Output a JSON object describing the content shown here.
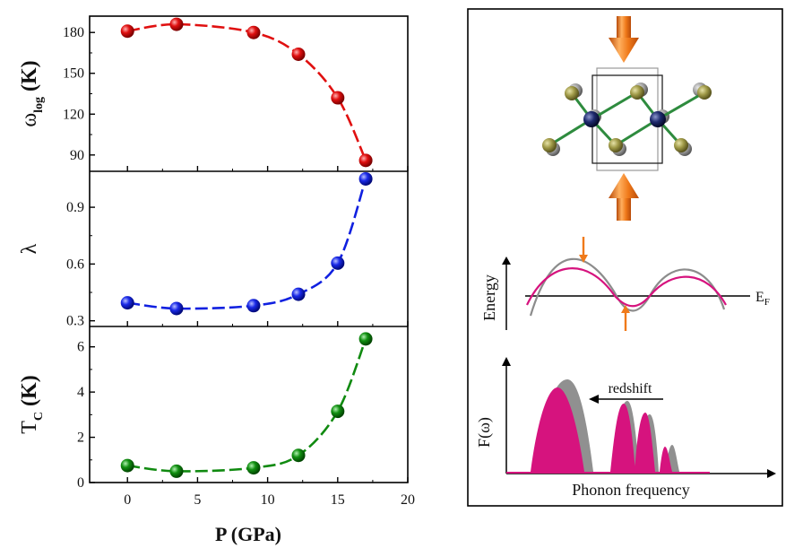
{
  "chart_data": [
    {
      "type": "line",
      "panel": "top",
      "x": [
        0,
        3.5,
        9,
        12.2,
        15,
        17
      ],
      "values": [
        181,
        186,
        180,
        164,
        132,
        86
      ],
      "ylabel_symbol": "ω",
      "ylabel_sub": "log",
      "ylabel_unit": "(K)",
      "yticks": [
        90,
        120,
        150,
        180
      ],
      "ylim": [
        78,
        192
      ],
      "color": "#e01010"
    },
    {
      "type": "line",
      "panel": "middle",
      "x": [
        0,
        3.5,
        9,
        12.2,
        15,
        17
      ],
      "values": [
        0.395,
        0.365,
        0.38,
        0.44,
        0.605,
        1.05
      ],
      "ylabel_symbol": "λ",
      "yticks": [
        "0.3",
        "0.6",
        "0.9"
      ],
      "ylim": [
        0.27,
        1.09
      ],
      "color": "#1020e0"
    },
    {
      "type": "line",
      "panel": "bottom",
      "x": [
        0,
        3.5,
        9,
        12.2,
        15,
        17
      ],
      "values": [
        0.75,
        0.5,
        0.65,
        1.2,
        3.15,
        6.35
      ],
      "ylabel_symbol": "T",
      "ylabel_sub": "C",
      "ylabel_unit": "(K)",
      "yticks": [
        0,
        2,
        4,
        6
      ],
      "ylim": [
        0,
        6.9
      ],
      "color": "#108a10"
    }
  ],
  "shared_x": {
    "xlabel": "P (GPa)",
    "xticks": [
      0,
      5,
      10,
      15,
      20
    ],
    "xlim": [
      -2.7,
      20
    ]
  },
  "schematic": {
    "energy_label": "Energy",
    "fermi_label": "E",
    "fermi_sub": "F",
    "phonon_ylabel": "F(ω)",
    "phonon_xlabel": "Phonon frequency",
    "redshift_label": "redshift",
    "colors": {
      "arrow": "#f07a1a",
      "magenta": "#d6137e",
      "gray": "#909090",
      "bond": "#2e8b3e",
      "atom_yellow": "#a09a48",
      "atom_blue": "#1e2a6e"
    }
  }
}
